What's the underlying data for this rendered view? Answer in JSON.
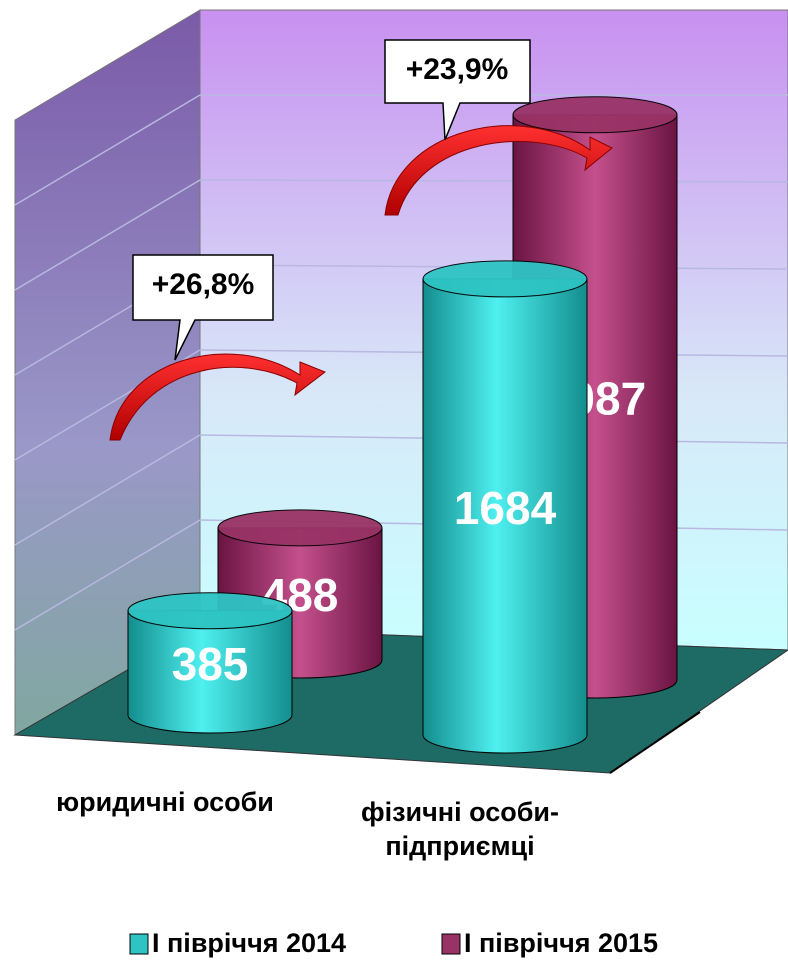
{
  "chart_data": {
    "type": "bar",
    "categories": [
      "юридичні особи",
      "фізичні особи-підприємці"
    ],
    "series": [
      {
        "name": "І півріччя 2014",
        "color": "#2ec4c4",
        "values": [
          385,
          1684
        ]
      },
      {
        "name": "І півріччя 2015",
        "color": "#993366",
        "values": [
          488,
          2087
        ]
      }
    ],
    "ylim": [
      0,
      2400
    ],
    "annotations": [
      "+26,8%",
      "+23,9%"
    ],
    "legend": "bottom"
  }
}
